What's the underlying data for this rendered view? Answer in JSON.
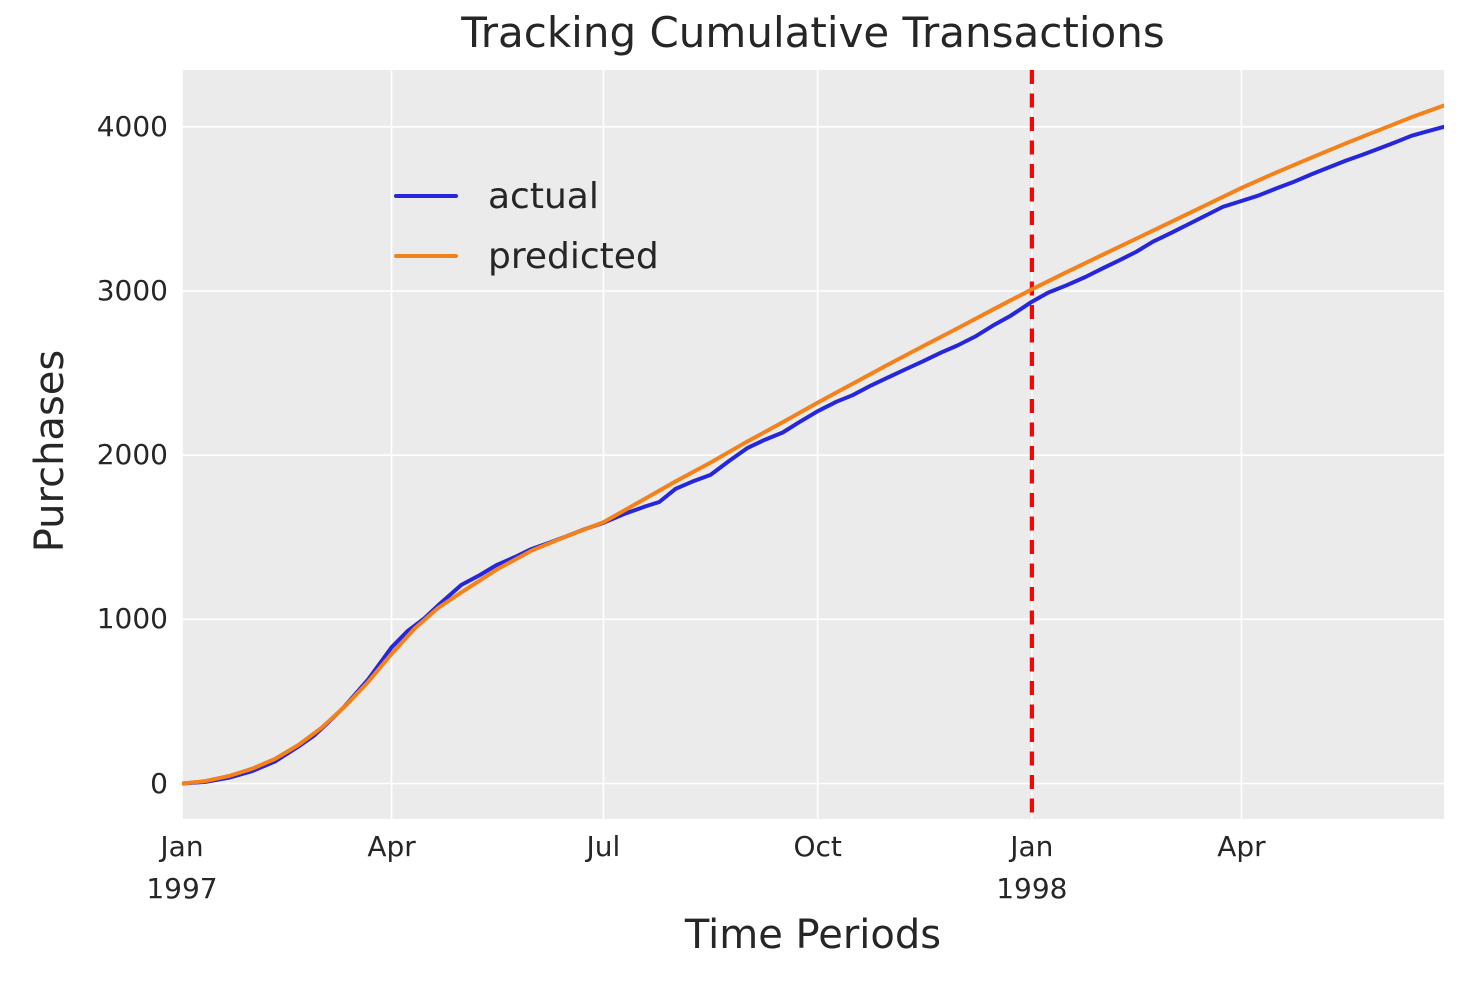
{
  "figure": {
    "title": "Tracking Cumulative Transactions",
    "background_color": "#ffffff",
    "text_color": "#262626"
  },
  "chart_data": {
    "type": "line",
    "title": "Tracking Cumulative Transactions",
    "xlabel": "Time Periods",
    "ylabel": "Purchases",
    "x_unit": "days since 1997-01-01",
    "x_range_days": [
      0,
      542
    ],
    "ylim": [
      -216,
      4346
    ],
    "grid": true,
    "plot_bg": "#ebebeb",
    "grid_color": "#ffffff",
    "legend": {
      "position": "upper left"
    },
    "yticks": [
      {
        "label": "0",
        "value": 0
      },
      {
        "label": "1000",
        "value": 1000
      },
      {
        "label": "2000",
        "value": 2000
      },
      {
        "label": "3000",
        "value": 3000
      },
      {
        "label": "4000",
        "value": 4000
      }
    ],
    "xticks": [
      {
        "label": "Jan",
        "sublabel": "1997",
        "day": 0
      },
      {
        "label": "Apr",
        "sublabel": "",
        "day": 90
      },
      {
        "label": "Jul",
        "sublabel": "",
        "day": 181
      },
      {
        "label": "Oct",
        "sublabel": "",
        "day": 273
      },
      {
        "label": "Jan",
        "sublabel": "1998",
        "day": 365
      },
      {
        "label": "Apr",
        "sublabel": "",
        "day": 455
      }
    ],
    "vline": {
      "day": 365,
      "color": "#ff0000",
      "dash": [
        14,
        9.5
      ],
      "width": 4.2
    },
    "series": [
      {
        "name": "actual",
        "color": "#2626dd",
        "points": [
          [
            0,
            0
          ],
          [
            10,
            10
          ],
          [
            20,
            35
          ],
          [
            30,
            75
          ],
          [
            40,
            135
          ],
          [
            50,
            225
          ],
          [
            57,
            295
          ],
          [
            63,
            375
          ],
          [
            70,
            472
          ],
          [
            80,
            635
          ],
          [
            90,
            830
          ],
          [
            97,
            930
          ],
          [
            104,
            1005
          ],
          [
            110,
            1085
          ],
          [
            120,
            1210
          ],
          [
            128,
            1270
          ],
          [
            135,
            1330
          ],
          [
            143,
            1380
          ],
          [
            150,
            1428
          ],
          [
            158,
            1468
          ],
          [
            165,
            1505
          ],
          [
            173,
            1550
          ],
          [
            181,
            1588
          ],
          [
            190,
            1642
          ],
          [
            199,
            1688
          ],
          [
            205,
            1715
          ],
          [
            212,
            1795
          ],
          [
            219,
            1838
          ],
          [
            227,
            1880
          ],
          [
            235,
            1965
          ],
          [
            243,
            2045
          ],
          [
            250,
            2092
          ],
          [
            258,
            2138
          ],
          [
            265,
            2200
          ],
          [
            273,
            2268
          ],
          [
            281,
            2325
          ],
          [
            288,
            2365
          ],
          [
            296,
            2425
          ],
          [
            303,
            2472
          ],
          [
            311,
            2525
          ],
          [
            318,
            2570
          ],
          [
            326,
            2625
          ],
          [
            333,
            2668
          ],
          [
            341,
            2725
          ],
          [
            349,
            2795
          ],
          [
            356,
            2850
          ],
          [
            365,
            2935
          ],
          [
            372,
            2990
          ],
          [
            380,
            3035
          ],
          [
            388,
            3085
          ],
          [
            395,
            3135
          ],
          [
            403,
            3190
          ],
          [
            410,
            3240
          ],
          [
            417,
            3300
          ],
          [
            425,
            3355
          ],
          [
            432,
            3405
          ],
          [
            440,
            3462
          ],
          [
            447,
            3512
          ],
          [
            455,
            3548
          ],
          [
            462,
            3580
          ],
          [
            470,
            3625
          ],
          [
            477,
            3662
          ],
          [
            485,
            3710
          ],
          [
            492,
            3750
          ],
          [
            500,
            3795
          ],
          [
            507,
            3830
          ],
          [
            515,
            3872
          ],
          [
            521,
            3905
          ],
          [
            528,
            3945
          ],
          [
            533,
            3965
          ],
          [
            538,
            3985
          ],
          [
            542,
            4000
          ]
        ]
      },
      {
        "name": "predicted",
        "color": "#f5811b",
        "points": [
          [
            0,
            0
          ],
          [
            10,
            15
          ],
          [
            20,
            45
          ],
          [
            30,
            90
          ],
          [
            40,
            150
          ],
          [
            50,
            235
          ],
          [
            60,
            340
          ],
          [
            70,
            470
          ],
          [
            80,
            620
          ],
          [
            90,
            790
          ],
          [
            100,
            945
          ],
          [
            110,
            1070
          ],
          [
            120,
            1165
          ],
          [
            135,
            1302
          ],
          [
            150,
            1418
          ],
          [
            165,
            1505
          ],
          [
            181,
            1592
          ],
          [
            196,
            1712
          ],
          [
            212,
            1840
          ],
          [
            227,
            1955
          ],
          [
            243,
            2085
          ],
          [
            258,
            2200
          ],
          [
            273,
            2320
          ],
          [
            288,
            2435
          ],
          [
            303,
            2550
          ],
          [
            318,
            2662
          ],
          [
            333,
            2772
          ],
          [
            349,
            2892
          ],
          [
            365,
            3010
          ],
          [
            380,
            3115
          ],
          [
            395,
            3218
          ],
          [
            410,
            3320
          ],
          [
            425,
            3422
          ],
          [
            440,
            3525
          ],
          [
            455,
            3628
          ],
          [
            470,
            3722
          ],
          [
            485,
            3812
          ],
          [
            500,
            3900
          ],
          [
            515,
            3985
          ],
          [
            528,
            4058
          ],
          [
            542,
            4130
          ]
        ]
      }
    ]
  }
}
